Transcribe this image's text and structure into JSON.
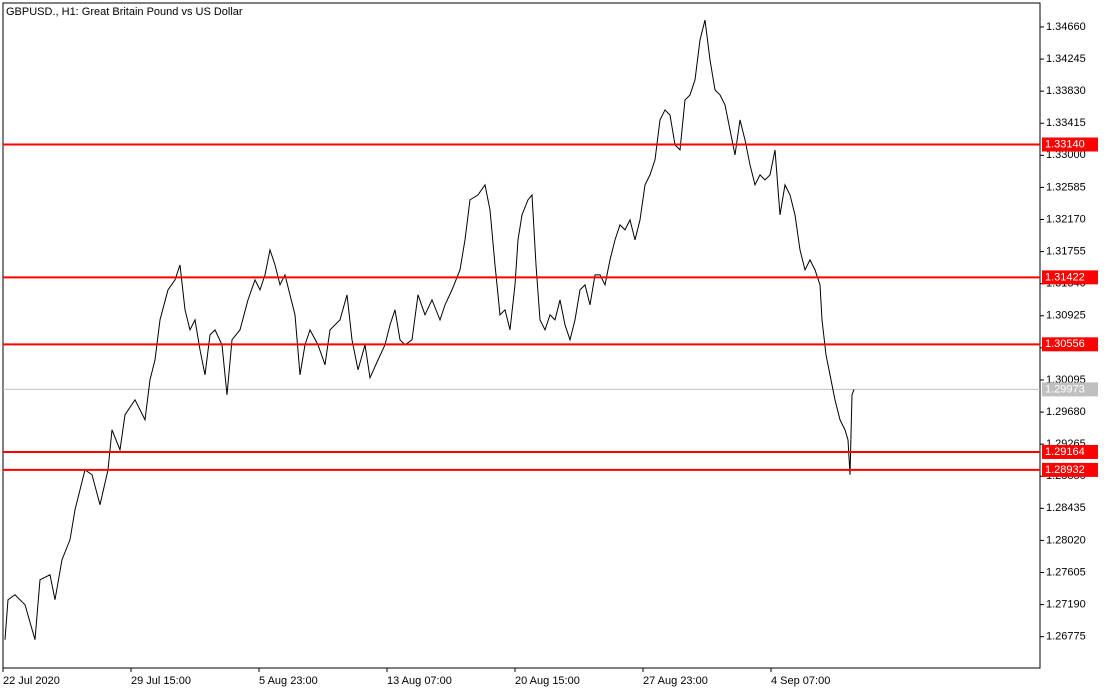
{
  "chart_data": {
    "type": "line",
    "title": "GBPUSD., H1:  Great Britain Pound vs US Dollar",
    "x": [
      2,
      5,
      12,
      22,
      32,
      37,
      47,
      52,
      59,
      67,
      72,
      82,
      89,
      97,
      105,
      109,
      117,
      122,
      132,
      142,
      147,
      152,
      157,
      165,
      172,
      177,
      182,
      187,
      192,
      197,
      202,
      207,
      212,
      219,
      224,
      229,
      237,
      245,
      252,
      257,
      262,
      267,
      272,
      277,
      282,
      287,
      292,
      297,
      302,
      307,
      315,
      322,
      327,
      337,
      344,
      349,
      355,
      362,
      367,
      375,
      382,
      387,
      392,
      397,
      402,
      409,
      415,
      422,
      429,
      437,
      442,
      449,
      457,
      462,
      467,
      475,
      482,
      487,
      492,
      497,
      502,
      507,
      512,
      515,
      519,
      525,
      529,
      533,
      537,
      542,
      547,
      552,
      557,
      562,
      567,
      572,
      577,
      582,
      587,
      592,
      597,
      602,
      607,
      612,
      617,
      622,
      627,
      632,
      637,
      642,
      647,
      652,
      657,
      662,
      667,
      672,
      677,
      682,
      687,
      692,
      697,
      702,
      707,
      712,
      717,
      722,
      727,
      732,
      737,
      742,
      747,
      752,
      757,
      762,
      767,
      772,
      777,
      782,
      787,
      792,
      797,
      802,
      807,
      812,
      817,
      819,
      823,
      827,
      832,
      837,
      842,
      845,
      847,
      849,
      851
    ],
    "series": [
      {
        "name": "GBPUSD.",
        "color": "#000000",
        "values": [
          1.26736,
          1.27253,
          1.27317,
          1.27188,
          1.26736,
          1.27511,
          1.27576,
          1.27253,
          1.2777,
          1.28028,
          1.28416,
          1.28933,
          1.28869,
          1.28481,
          1.28933,
          1.2945,
          1.29192,
          1.29644,
          1.29838,
          1.2958,
          1.30097,
          1.30355,
          1.30872,
          1.3126,
          1.31389,
          1.31583,
          1.31002,
          1.30743,
          1.30872,
          1.30485,
          1.30161,
          1.30678,
          1.30743,
          1.30549,
          1.29903,
          1.30614,
          1.30743,
          1.31131,
          1.31389,
          1.3126,
          1.31454,
          1.31777,
          1.31583,
          1.31325,
          1.31454,
          1.31196,
          1.30937,
          1.30161,
          1.30549,
          1.30743,
          1.30549,
          1.30291,
          1.30743,
          1.30872,
          1.31196,
          1.30614,
          1.30226,
          1.30549,
          1.30123,
          1.30355,
          1.30549,
          1.30808,
          1.31002,
          1.30614,
          1.30549,
          1.30614,
          1.31196,
          1.30937,
          1.31131,
          1.30872,
          1.31066,
          1.3126,
          1.31519,
          1.31907,
          1.32424,
          1.32488,
          1.32618,
          1.32294,
          1.31583,
          1.30937,
          1.31002,
          1.30743,
          1.31325,
          1.31907,
          1.3223,
          1.32424,
          1.32488,
          1.31583,
          1.30872,
          1.30743,
          1.30937,
          1.30872,
          1.31131,
          1.30808,
          1.30614,
          1.30872,
          1.3126,
          1.31325,
          1.31066,
          1.31454,
          1.31454,
          1.31325,
          1.31648,
          1.31907,
          1.32101,
          1.32036,
          1.32165,
          1.31907,
          1.32165,
          1.32618,
          1.32747,
          1.32941,
          1.33458,
          1.33587,
          1.33522,
          1.33135,
          1.3307,
          1.33716,
          1.33781,
          1.33975,
          1.34492,
          1.3475,
          1.34233,
          1.33846,
          1.33781,
          1.33652,
          1.33329,
          1.33005,
          1.33458,
          1.33199,
          1.32876,
          1.32618,
          1.32747,
          1.32682,
          1.32747,
          1.3307,
          1.3223,
          1.32618,
          1.32488,
          1.3223,
          1.31777,
          1.31519,
          1.31648,
          1.31519,
          1.31325,
          1.30872,
          1.3042,
          1.30161,
          1.29838,
          1.2958,
          1.2945,
          1.29321,
          1.28869,
          1.29903,
          1.29973
        ]
      }
    ],
    "xlim": [
      0,
      1037
    ],
    "xticks": [
      {
        "value": 0,
        "label": "22 Jul 2020"
      },
      {
        "value": 128,
        "label": "29 Jul 15:00"
      },
      {
        "value": 256,
        "label": "5 Aug 23:00"
      },
      {
        "value": 384,
        "label": "13 Aug 07:00"
      },
      {
        "value": 512,
        "label": "20 Aug 15:00"
      },
      {
        "value": 640,
        "label": "27 Aug 23:00"
      },
      {
        "value": 768,
        "label": "4 Sep 07:00"
      }
    ],
    "ylim": [
      1.2637,
      1.3497
    ],
    "yticks": [
      {
        "value": 1.3466,
        "label": "1.34660"
      },
      1.34245,
      {
        "value": 1.3383,
        "label": "1.33830"
      },
      1.33415,
      {
        "value": 1.33,
        "label": "1.33000"
      },
      1.32585,
      {
        "value": 1.3217,
        "label": "1.32170"
      },
      1.31755,
      {
        "value": 1.3134,
        "label": "1.31340"
      },
      1.30925,
      {
        "value": 1.3051,
        "label": "1.30510"
      },
      1.30095,
      {
        "value": 1.2968,
        "label": "1.29680"
      },
      1.29265,
      {
        "value": 1.2885,
        "label": "1.28850"
      },
      1.28435,
      {
        "value": 1.2802,
        "label": "1.28020"
      },
      1.27605,
      {
        "value": 1.2719,
        "label": "1.27190"
      },
      1.26775
    ],
    "levels": [
      {
        "value": 1.3314,
        "label": "1.33140"
      },
      1.31422,
      1.30556,
      1.29164,
      1.28932
    ],
    "level_color": "#ff0000",
    "last_price": 1.29973,
    "last_price_color": "#c0c0c0"
  }
}
